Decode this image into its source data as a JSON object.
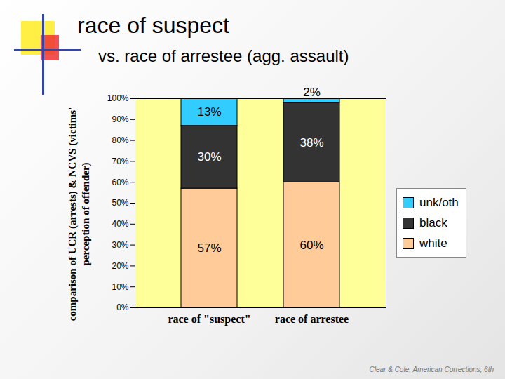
{
  "chart_data": {
    "type": "bar",
    "title": "race of suspect",
    "subtitle": "vs. race of arrestee (agg. assault)",
    "y_label": "comparison of UCR (arrests) & NCVS (victims' perception of offender)",
    "caption": "Clear & Cole, American Corrections, 6th",
    "categories": [
      "race of \"suspect\"",
      "race of arrestee"
    ],
    "series": [
      {
        "name": "white",
        "color": "#ffcc99",
        "values": [
          57,
          60
        ],
        "value_labels": [
          "57%",
          "60%"
        ]
      },
      {
        "name": "black",
        "color": "#333333",
        "values": [
          30,
          38
        ],
        "value_labels": [
          "30%",
          "38%"
        ]
      },
      {
        "name": "unk/oth",
        "color": "#33ccff",
        "values": [
          13,
          2
        ],
        "value_labels": [
          "13%",
          "2%"
        ]
      }
    ],
    "stacked": true,
    "data_labels": true,
    "grid": false,
    "legend": "right",
    "ylim": [
      0,
      100
    ],
    "yticks": [
      {
        "value": 0,
        "label": "0%"
      },
      {
        "value": 10,
        "label": "10%"
      },
      {
        "value": 20,
        "label": "20%"
      },
      {
        "value": 30,
        "label": "30%"
      },
      {
        "value": 40,
        "label": "40%"
      },
      {
        "value": 50,
        "label": "50%"
      },
      {
        "value": 60,
        "label": "60%"
      },
      {
        "value": 70,
        "label": "70%"
      },
      {
        "value": 80,
        "label": "80%"
      },
      {
        "value": 90,
        "label": "90%"
      },
      {
        "value": 100,
        "label": "100%"
      }
    ]
  }
}
